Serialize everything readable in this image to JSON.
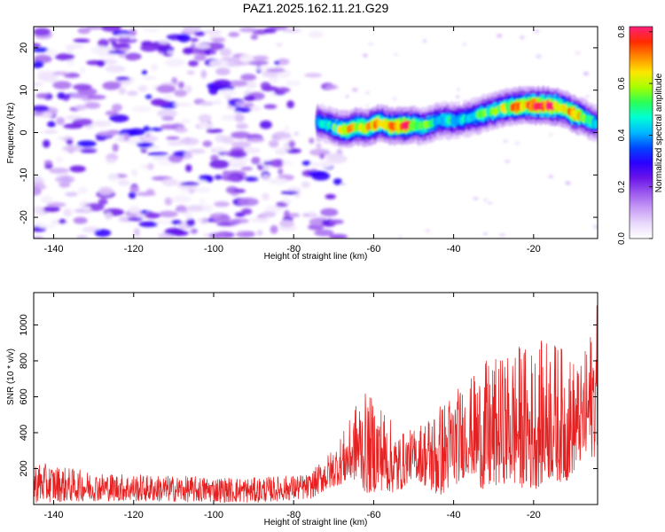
{
  "title": "PAZ1.2025.162.11.21.G29",
  "chart_data": [
    {
      "type": "heatmap",
      "xlabel": "Height of straight line (km)",
      "ylabel": "Frequency (Hz)",
      "xlim": [
        -145,
        -4
      ],
      "ylim": [
        -25,
        25
      ],
      "xticks": [
        -140,
        -120,
        -100,
        -80,
        -60,
        -40,
        -20
      ],
      "yticks": [
        -20,
        -10,
        0,
        10,
        20
      ],
      "colorbar": {
        "label": "Normalized spectral amplitude",
        "range": [
          0,
          0.82
        ],
        "ticks": [
          0.0,
          0.2,
          0.4,
          0.6,
          0.8
        ],
        "colormap": [
          "#ffffff",
          "#e9d9fb",
          "#c79cf5",
          "#9b59ee",
          "#6a14e8",
          "#2a00ff",
          "#0047ff",
          "#00b8ff",
          "#00ffd5",
          "#2aff55",
          "#a6ff00",
          "#ffe500",
          "#ff8a00",
          "#ff2a00",
          "#ff1f7a"
        ]
      },
      "ridge": {
        "x": [
          -74,
          -72,
          -70,
          -68,
          -66,
          -64,
          -62,
          -60,
          -58,
          -56,
          -54,
          -52,
          -50,
          -48,
          -46,
          -44,
          -42,
          -40,
          -38,
          -36,
          -34,
          -32,
          -30,
          -28,
          -26,
          -24,
          -22,
          -20,
          -18,
          -16,
          -14,
          -12,
          -10,
          -8,
          -6,
          -4
        ],
        "frequency": [
          2.5,
          2.0,
          1.2,
          0.7,
          0.8,
          1.5,
          1.0,
          1.8,
          2.2,
          1.5,
          1.5,
          1.6,
          1.8,
          1.5,
          2.0,
          2.8,
          3.0,
          2.8,
          3.0,
          3.5,
          4.0,
          4.6,
          5.0,
          5.6,
          6.0,
          6.2,
          6.4,
          6.4,
          6.4,
          6.3,
          6.1,
          5.5,
          4.4,
          3.8,
          2.8,
          2.0
        ],
        "amplitude": [
          0.45,
          0.4,
          0.5,
          0.6,
          0.62,
          0.65,
          0.6,
          0.72,
          0.6,
          0.68,
          0.7,
          0.76,
          0.6,
          0.5,
          0.52,
          0.45,
          0.48,
          0.45,
          0.42,
          0.45,
          0.5,
          0.52,
          0.55,
          0.58,
          0.6,
          0.72,
          0.66,
          0.78,
          0.78,
          0.8,
          0.7,
          0.62,
          0.75,
          0.55,
          0.5,
          0.42
        ]
      },
      "noise_region": {
        "x_range": [
          -145,
          -72
        ],
        "amplitude_range": [
          0.02,
          0.3
        ]
      }
    },
    {
      "type": "line",
      "xlabel": "Height of straight line (km)",
      "ylabel": "SNR (10 * v/v)",
      "xlim": [
        -145,
        -4
      ],
      "ylim": [
        0,
        1180
      ],
      "xticks": [
        -140,
        -120,
        -100,
        -80,
        -60,
        -40,
        -20
      ],
      "yticks": [
        200,
        400,
        600,
        800,
        1000
      ],
      "color": "#e62020",
      "envelope": {
        "x": [
          -145,
          -130,
          -110,
          -90,
          -76,
          -70,
          -66,
          -64,
          -62,
          -58,
          -54,
          -50,
          -44,
          -40,
          -36,
          -32,
          -28,
          -24,
          -20,
          -16,
          -12,
          -8,
          -5,
          -4
        ],
        "low": [
          10,
          20,
          15,
          10,
          30,
          100,
          130,
          140,
          60,
          80,
          60,
          160,
          40,
          100,
          180,
          60,
          120,
          100,
          80,
          140,
          120,
          240,
          260,
          300
        ],
        "high": [
          240,
          180,
          160,
          150,
          170,
          320,
          470,
          600,
          620,
          570,
          400,
          420,
          560,
          640,
          700,
          800,
          820,
          900,
          880,
          950,
          860,
          780,
          1050,
          1130
        ]
      }
    }
  ]
}
